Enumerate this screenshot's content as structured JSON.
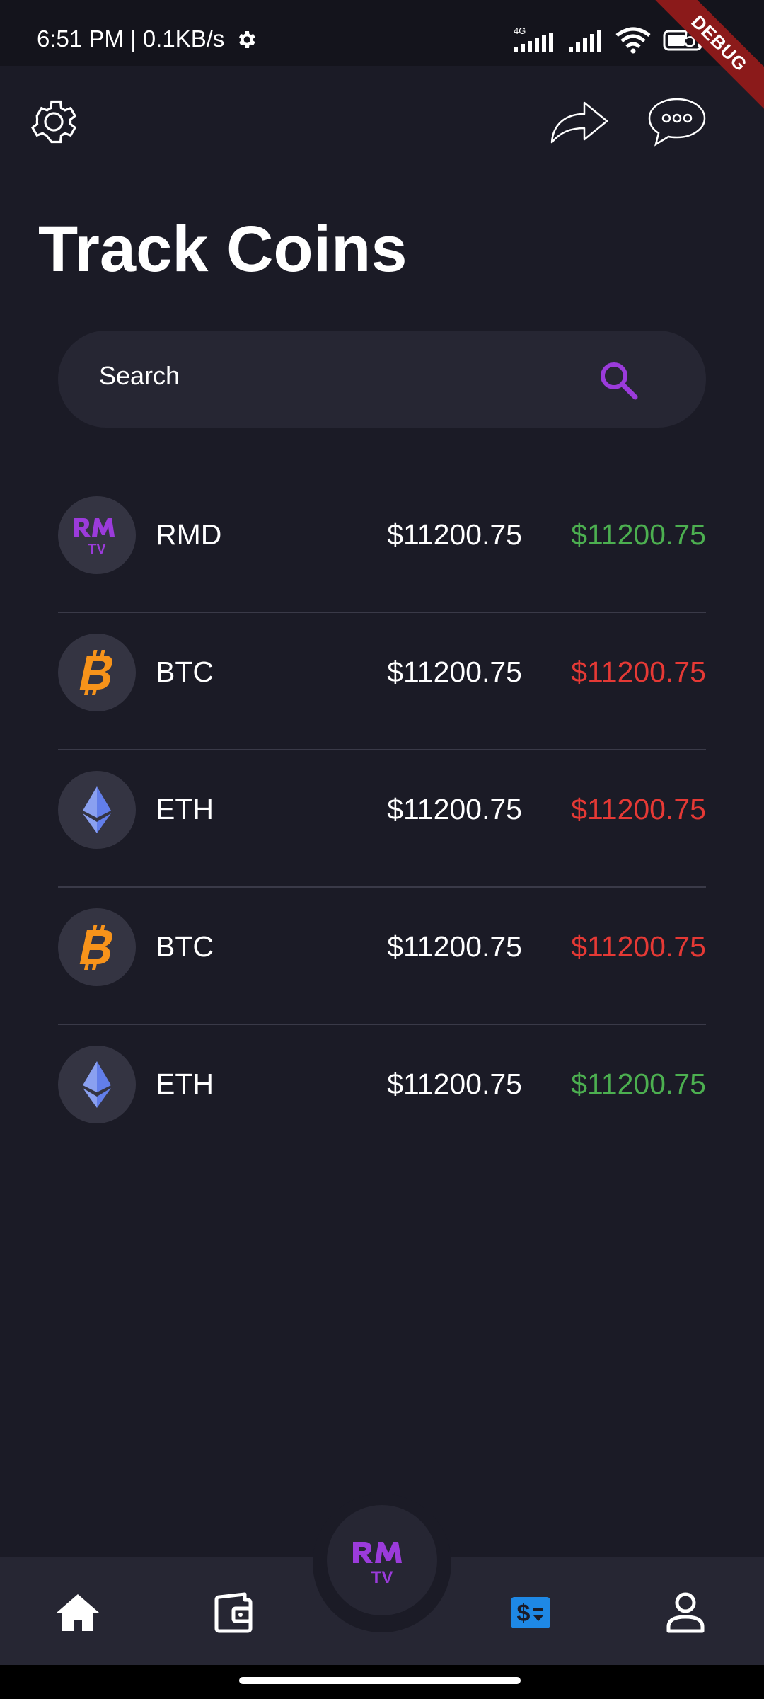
{
  "status_bar": {
    "time_speed": "6:51 PM | 0.1KB/s",
    "network_label": "4G",
    "battery_text": "52",
    "debug_label": "DEBUG"
  },
  "header": {
    "title": "Track Coins",
    "icons": [
      "gear-icon",
      "share-icon",
      "chat-bubble-icon"
    ]
  },
  "search": {
    "placeholder": "Search"
  },
  "coins": [
    {
      "symbol": "RMD",
      "price": "$11200.75",
      "change": "$11200.75",
      "trend": "up",
      "icon": "rmtv-logo"
    },
    {
      "symbol": "BTC",
      "price": "$11200.75",
      "change": "$11200.75",
      "trend": "down",
      "icon": "bitcoin-icon"
    },
    {
      "symbol": "ETH",
      "price": "$11200.75",
      "change": "$11200.75",
      "trend": "down",
      "icon": "ethereum-icon"
    },
    {
      "symbol": "BTC",
      "price": "$11200.75",
      "change": "$11200.75",
      "trend": "down",
      "icon": "bitcoin-icon"
    },
    {
      "symbol": "ETH",
      "price": "$11200.75",
      "change": "$11200.75",
      "trend": "up",
      "icon": "ethereum-icon"
    }
  ],
  "nav": {
    "center_logo_text_top": "RM",
    "center_logo_text_bottom": "TV",
    "items": [
      "home-icon",
      "wallet-icon",
      "rmtv-logo",
      "exchange-icon",
      "profile-icon"
    ],
    "active_item": "exchange-icon"
  },
  "colors": {
    "background": "#1b1b26",
    "surface": "#262633",
    "accent_purple": "#9b3bdb",
    "up_green": "#4caf50",
    "down_red": "#e53935",
    "active_blue": "#1e88e5",
    "bitcoin_orange": "#f7931a",
    "ethereum_blue": "#627eea"
  }
}
